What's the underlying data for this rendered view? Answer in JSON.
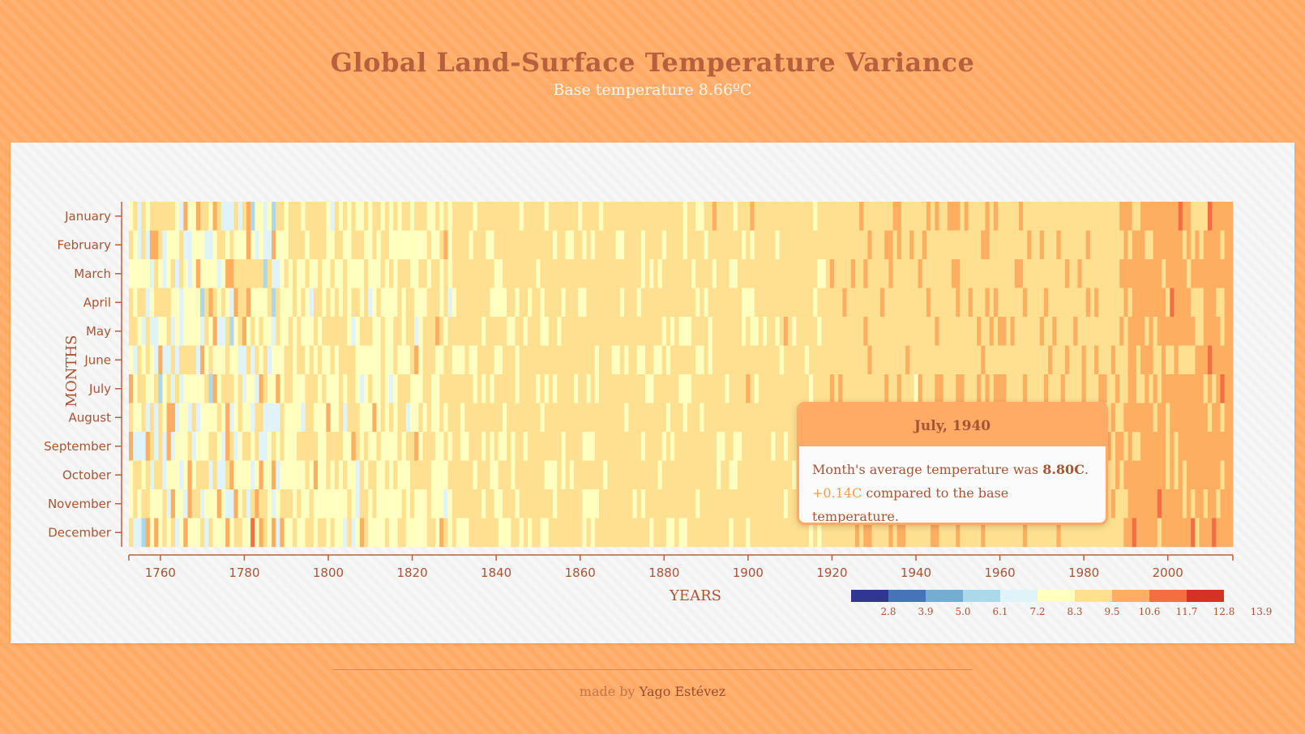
{
  "header": {
    "title": "Global Land-Surface Temperature Variance",
    "subtitle": "Base temperature 8.66ºC"
  },
  "colors": {
    "page_background": "#ffab66",
    "card_background": "#f7f7f8",
    "text_accent": "#a85434",
    "scale": [
      "#313695",
      "#4575b4",
      "#74add1",
      "#abd9e9",
      "#e0f3f8",
      "#ffffbf",
      "#fee090",
      "#fdae61",
      "#f46d43",
      "#d73027",
      "#a50026"
    ]
  },
  "tooltip": {
    "title": "July, 1940",
    "line1_prefix": "Month's average temperature was ",
    "line1_value": "8.80C",
    "line1_suffix": ".",
    "line2_diff": "+0.14C",
    "line2_suffix": " compared to the base temperature."
  },
  "footer": {
    "made_by": "made by ",
    "author": "Yago Estévez"
  },
  "chart_data": {
    "type": "heatmap",
    "title": "Global Land-Surface Temperature Variance",
    "subtitle": "Base temperature 8.66ºC",
    "xlabel": "YEARS",
    "ylabel": "MONTHS",
    "base_temperature": 8.66,
    "x_range": [
      1753,
      2015
    ],
    "x_ticks": [
      1760,
      1780,
      1800,
      1820,
      1840,
      1860,
      1880,
      1900,
      1920,
      1940,
      1960,
      1980,
      2000
    ],
    "months": [
      "January",
      "February",
      "March",
      "April",
      "May",
      "June",
      "July",
      "August",
      "September",
      "October",
      "November",
      "December"
    ],
    "legend": {
      "thresholds": [
        "2.8",
        "3.9",
        "5.0",
        "6.1",
        "7.2",
        "8.3",
        "9.5",
        "10.6",
        "11.7",
        "12.8",
        "13.9"
      ],
      "colors": [
        "#313695",
        "#4575b4",
        "#74add1",
        "#abd9e9",
        "#e0f3f8",
        "#ffffbf",
        "#fee090",
        "#fdae61",
        "#f46d43",
        "#d73027",
        "#a50026"
      ]
    },
    "highlighted_cell": {
      "year": 1940,
      "month": "July",
      "temperature": 8.8,
      "variance": 0.14
    },
    "cell_generation": "variance per cell approximated from the visible color bands; early years (1753–1850) show strong cold/hot scatter, late years (1990–2015) are predominantly warm"
  }
}
